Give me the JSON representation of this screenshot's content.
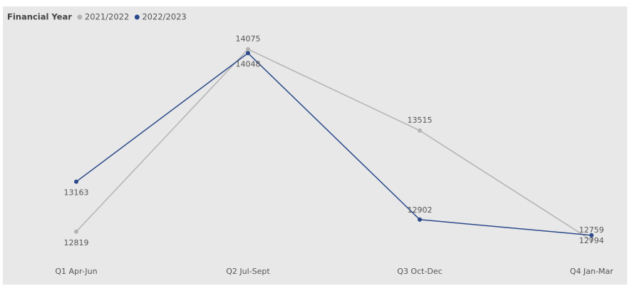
{
  "chart_data": {
    "type": "line",
    "legend_title": "Financial Year",
    "categories": [
      "Q1 Apr-Jun",
      "Q2 Jul-Sept",
      "Q3 Oct-Dec",
      "Q4 Jan-Mar"
    ],
    "series": [
      {
        "name": "2021/2022",
        "color": "#b3b3b3",
        "values": [
          12819,
          14075,
          13515,
          12759
        ]
      },
      {
        "name": "2022/2023",
        "color": "#2b4a8b",
        "values": [
          13163,
          14048,
          12902,
          12794
        ]
      }
    ],
    "legend": "top-left"
  }
}
